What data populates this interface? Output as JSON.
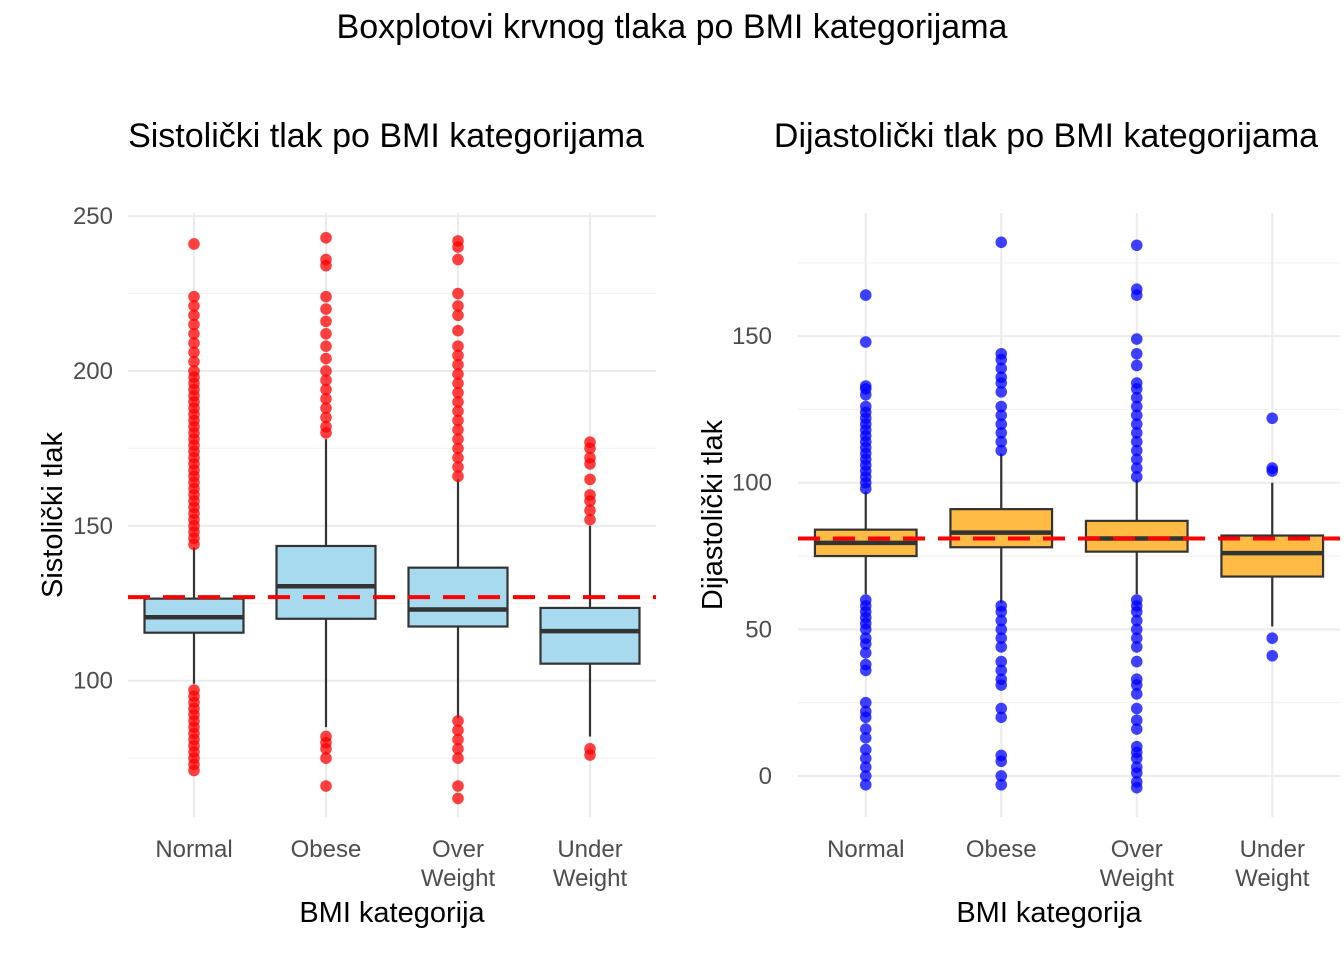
{
  "title": "Boxplotovi krvnog tlaka po BMI kategorijama",
  "chart_data": [
    {
      "type": "boxplot",
      "title": "Sistolički tlak po BMI kategorijama",
      "xlabel": "BMI kategorija",
      "ylabel": "Sistolički tlak",
      "categories": [
        "Normal",
        "Obese",
        "Over\nWeight",
        "Under\nWeight"
      ],
      "category_lines": [
        [
          "Normal"
        ],
        [
          "Obese"
        ],
        [
          "Over",
          "Weight"
        ],
        [
          "Under",
          "Weight"
        ]
      ],
      "ylim": [
        56,
        251
      ],
      "yticks": [
        100,
        150,
        200,
        250
      ],
      "grid": true,
      "box_color": "#a7d9ef",
      "outlier_color": "#ff0000",
      "reference_line": {
        "y": 127,
        "color": "#ff0000",
        "style": "dashed"
      },
      "boxes": [
        {
          "category": "Normal",
          "whisker_low": 99,
          "q1": 115.5,
          "median": 120.5,
          "q3": 126.5,
          "whisker_high": 143,
          "outliers": [
            71,
            73,
            75,
            77,
            79,
            81,
            83,
            85,
            87,
            89,
            91,
            93,
            95,
            97,
            144,
            146,
            148,
            150,
            152,
            154,
            156,
            158,
            160,
            162,
            164,
            166,
            168,
            170,
            172,
            174,
            176,
            178,
            180,
            182,
            184,
            186,
            188,
            190,
            192,
            194,
            196,
            198,
            200,
            203,
            206,
            209,
            212,
            215,
            218,
            221,
            224,
            241
          ]
        },
        {
          "category": "Obese",
          "whisker_low": 85,
          "q1": 120,
          "median": 130.5,
          "q3": 143.5,
          "whisker_high": 178,
          "outliers": [
            66,
            75,
            78,
            80,
            82,
            180,
            182,
            185,
            188,
            191,
            194,
            197,
            200,
            204,
            208,
            212,
            216,
            220,
            224,
            234,
            236,
            243
          ]
        },
        {
          "category": "Over\nWeight",
          "whisker_low": 88,
          "q1": 117.5,
          "median": 123,
          "q3": 136.5,
          "whisker_high": 165,
          "outliers": [
            62,
            66,
            75,
            78,
            81,
            84,
            87,
            166,
            169,
            172,
            175,
            178,
            181,
            184,
            187,
            190,
            193,
            196,
            199,
            202,
            205,
            208,
            213,
            218,
            221,
            225,
            236,
            240,
            242
          ]
        },
        {
          "category": "Under\nWeight",
          "whisker_low": 82,
          "q1": 105.5,
          "median": 116,
          "q3": 123.5,
          "whisker_high": 150,
          "outliers": [
            76,
            78,
            152,
            155,
            158,
            160,
            165,
            170,
            172,
            175,
            177
          ]
        }
      ]
    },
    {
      "type": "boxplot",
      "title": "Dijastolički tlak po BMI kategorijama",
      "xlabel": "BMI kategorija",
      "ylabel": "Dijastolički tlak",
      "categories": [
        "Normal",
        "Obese",
        "Over\nWeight",
        "Under\nWeight"
      ],
      "category_lines": [
        [
          "Normal"
        ],
        [
          "Obese"
        ],
        [
          "Over",
          "Weight"
        ],
        [
          "Under",
          "Weight"
        ]
      ],
      "ylim": [
        -14,
        192
      ],
      "yticks": [
        0,
        50,
        100,
        150
      ],
      "grid": true,
      "box_color": "#ffbb44",
      "outlier_color": "#0000ff",
      "reference_line": {
        "y": 81,
        "color": "#ff0000",
        "style": "dashed"
      },
      "boxes": [
        {
          "category": "Normal",
          "whisker_low": 62,
          "q1": 75,
          "median": 79.5,
          "q3": 84,
          "whisker_high": 97,
          "outliers": [
            -3,
            0,
            3,
            6,
            9,
            13,
            16,
            20,
            22,
            25,
            36,
            38,
            42,
            45,
            47,
            50,
            52,
            54,
            56,
            58,
            60,
            98,
            100,
            102,
            104,
            106,
            108,
            110,
            112,
            114,
            116,
            118,
            120,
            122,
            124,
            126,
            130,
            132,
            133,
            148,
            164
          ]
        },
        {
          "category": "Obese",
          "whisker_low": 59,
          "q1": 78,
          "median": 83,
          "q3": 91,
          "whisker_high": 110,
          "outliers": [
            -3,
            0,
            5,
            7,
            20,
            23,
            31,
            33,
            36,
            39,
            44,
            47,
            50,
            53,
            56,
            58,
            111,
            114,
            117,
            120,
            123,
            126,
            131,
            134,
            136,
            139,
            142,
            144,
            182
          ]
        },
        {
          "category": "Over\nWeight",
          "whisker_low": 62,
          "q1": 76.5,
          "median": 81,
          "q3": 87,
          "whisker_high": 101,
          "outliers": [
            -4,
            -2,
            1,
            3,
            6,
            8,
            10,
            16,
            19,
            23,
            28,
            31,
            33,
            39,
            44,
            47,
            50,
            53,
            56,
            58,
            60,
            102,
            105,
            108,
            111,
            114,
            117,
            120,
            123,
            126,
            129,
            132,
            134,
            140,
            144,
            149,
            164,
            166,
            181
          ]
        },
        {
          "category": "Under\nWeight",
          "whisker_low": 51,
          "q1": 68,
          "median": 76,
          "q3": 82,
          "whisker_high": 100,
          "outliers": [
            41,
            47,
            104,
            105,
            122
          ]
        }
      ]
    }
  ]
}
